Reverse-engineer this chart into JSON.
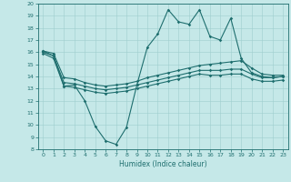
{
  "xlabel": "Humidex (Indice chaleur)",
  "xlim": [
    -0.5,
    23.5
  ],
  "ylim": [
    8,
    20
  ],
  "xticks": [
    0,
    1,
    2,
    3,
    4,
    5,
    6,
    7,
    8,
    9,
    10,
    11,
    12,
    13,
    14,
    15,
    16,
    17,
    18,
    19,
    20,
    21,
    22,
    23
  ],
  "yticks": [
    8,
    9,
    10,
    11,
    12,
    13,
    14,
    15,
    16,
    17,
    18,
    19,
    20
  ],
  "background_color": "#c5e8e8",
  "grid_color": "#9ecece",
  "line_color": "#1e6e6e",
  "hours": [
    0,
    1,
    2,
    3,
    4,
    5,
    6,
    7,
    8,
    9,
    10,
    11,
    12,
    13,
    14,
    15,
    16,
    17,
    18,
    19,
    20,
    21,
    22,
    23
  ],
  "line_max": [
    16.1,
    15.7,
    13.2,
    13.3,
    12.0,
    9.9,
    8.7,
    8.4,
    9.8,
    13.3,
    16.4,
    17.5,
    19.5,
    18.5,
    18.3,
    19.5,
    17.3,
    17.0,
    18.8,
    15.5,
    14.3,
    14.0,
    13.9,
    14.0
  ],
  "line_avg_high": [
    16.1,
    15.9,
    13.9,
    13.8,
    13.5,
    13.3,
    13.2,
    13.3,
    13.4,
    13.6,
    13.9,
    14.1,
    14.3,
    14.5,
    14.7,
    14.9,
    15.0,
    15.1,
    15.2,
    15.3,
    14.7,
    14.2,
    14.1,
    14.1
  ],
  "line_avg": [
    16.0,
    15.7,
    13.5,
    13.4,
    13.2,
    13.0,
    12.9,
    13.0,
    13.1,
    13.3,
    13.5,
    13.7,
    13.9,
    14.1,
    14.3,
    14.5,
    14.5,
    14.5,
    14.6,
    14.6,
    14.2,
    13.9,
    13.9,
    14.0
  ],
  "line_avg_low": [
    15.9,
    15.5,
    13.2,
    13.1,
    12.9,
    12.7,
    12.6,
    12.7,
    12.8,
    13.0,
    13.2,
    13.4,
    13.6,
    13.8,
    14.0,
    14.2,
    14.1,
    14.1,
    14.2,
    14.2,
    13.8,
    13.6,
    13.6,
    13.7
  ],
  "tick_fontsize": 4.5,
  "xlabel_fontsize": 5.5,
  "linewidth": 0.8,
  "markersize": 1.8
}
